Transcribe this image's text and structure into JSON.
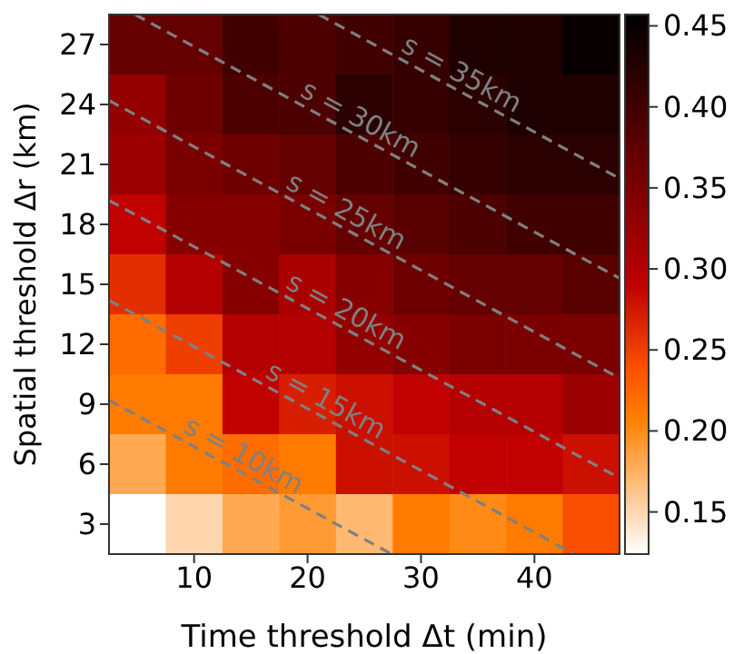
{
  "chart_data": {
    "type": "heatmap",
    "xlabel": "Time threshold Δt (min)",
    "ylabel": "Spatial threshold Δr (km)",
    "x": [
      5,
      10,
      15,
      20,
      25,
      30,
      35,
      40,
      45
    ],
    "cells": [
      [
        0.37,
        0.37,
        0.4,
        0.39,
        0.4,
        0.41,
        0.43,
        0.43,
        0.45
      ],
      [
        0.33,
        0.36,
        0.39,
        0.39,
        0.42,
        0.41,
        0.42,
        0.43,
        0.43
      ],
      [
        0.32,
        0.35,
        0.36,
        0.37,
        0.39,
        0.4,
        0.41,
        0.42,
        0.42
      ],
      [
        0.29,
        0.34,
        0.34,
        0.35,
        0.37,
        0.38,
        0.39,
        0.4,
        0.4
      ],
      [
        0.26,
        0.3,
        0.34,
        0.31,
        0.34,
        0.36,
        0.37,
        0.37,
        0.38
      ],
      [
        0.22,
        0.25,
        0.3,
        0.3,
        0.33,
        0.34,
        0.35,
        0.35,
        0.35
      ],
      [
        0.21,
        0.21,
        0.29,
        0.27,
        0.28,
        0.29,
        0.3,
        0.3,
        0.32
      ],
      [
        0.18,
        0.21,
        0.22,
        0.21,
        0.28,
        0.28,
        0.29,
        0.29,
        0.28
      ],
      [
        0.12,
        0.15,
        0.18,
        0.19,
        0.17,
        0.21,
        0.2,
        0.21,
        0.24
      ]
    ],
    "xlim": [
      2.5,
      47.5
    ],
    "xticks": [
      10,
      20,
      30,
      40
    ],
    "ylim": [
      1.5,
      28.5
    ],
    "yticks": [
      3,
      6,
      9,
      12,
      15,
      18,
      21,
      24,
      27
    ],
    "clim": [
      0.124,
      0.457
    ],
    "cticks": [
      0.15,
      {
        "value": 0.2,
        "label": "0.20"
      },
      0.25,
      {
        "value": 0.3,
        "label": "0.30"
      },
      0.35,
      {
        "value": 0.4,
        "label": "0.40"
      },
      0.45
    ],
    "series": [
      {
        "type": "line",
        "name": "s = 10km",
        "color": "#808080",
        "x": [
          2.5,
          27.4
        ],
        "values": [
          9.2,
          1.5
        ]
      },
      {
        "type": "line",
        "name": "s = 15km",
        "color": "#808080",
        "x": [
          2.5,
          43.5
        ],
        "values": [
          14.2,
          1.5
        ]
      },
      {
        "type": "line",
        "name": "s = 20km",
        "color": "#808080",
        "x": [
          2.5,
          47.5
        ],
        "values": [
          19.2,
          5.3
        ]
      },
      {
        "type": "line",
        "name": "s = 25km",
        "color": "#808080",
        "x": [
          2.5,
          47.5
        ],
        "values": [
          24.2,
          10.3
        ]
      },
      {
        "type": "line",
        "name": "s = 30km",
        "color": "#808080",
        "x": [
          4.8,
          47.5
        ],
        "values": [
          28.5,
          15.3
        ]
      },
      {
        "type": "line",
        "name": "s = 35km",
        "color": "#808080",
        "x": [
          21.0,
          47.5
        ],
        "values": [
          28.5,
          20.3
        ]
      }
    ],
    "line_style": "dashed",
    "marker": "none"
  }
}
